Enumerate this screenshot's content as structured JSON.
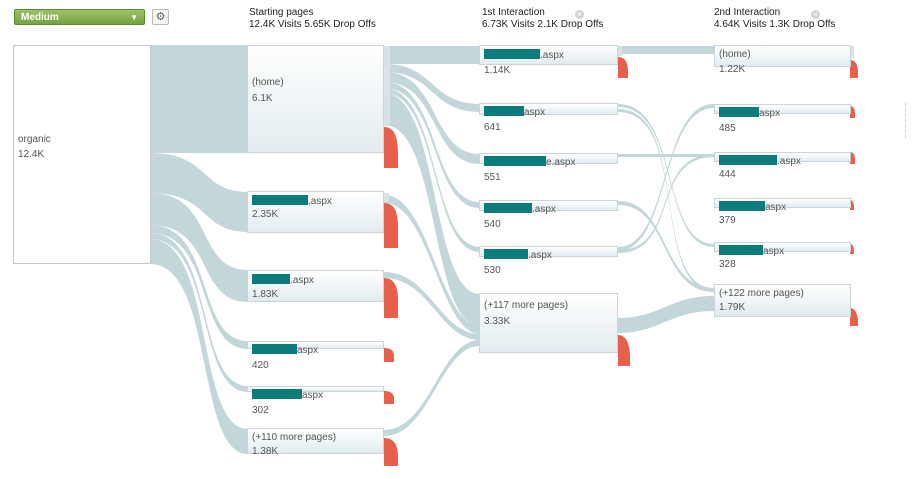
{
  "toolbar": {
    "dimension_select": "Medium",
    "settings_icon": "gear-icon"
  },
  "columns": [
    {
      "title": "Starting pages",
      "stats": "12.4K Visits 5.65K Drop Offs"
    },
    {
      "title": "1st Interaction",
      "stats": "6.73K Visits 2.1K Drop Offs",
      "close_icon": "close-icon"
    },
    {
      "title": "2nd Interaction",
      "stats": "4.64K Visits 1.3K Drop Offs",
      "close_icon": "close-icon"
    }
  ],
  "root": {
    "label": "organic",
    "value": "12.4K"
  },
  "starting_pages": [
    {
      "label": "(home)",
      "value": "6.1K",
      "dropoff_share": 0.26
    },
    {
      "label": ".aspx",
      "value": "2.35K",
      "redacted": true,
      "dropoff_share": 0.7
    },
    {
      "label": ".aspx",
      "value": "1.83K",
      "redacted": true,
      "dropoff_share": 0.75
    },
    {
      "label": "aspx",
      "value": "420",
      "redacted": true,
      "dropoff_share": 0.5
    },
    {
      "label": "aspx",
      "value": "302",
      "redacted": true,
      "dropoff_share": 0.5
    },
    {
      "label": "(+110 more pages)",
      "value": "1.38K",
      "dropoff_share": 0.6
    }
  ],
  "first_interaction": [
    {
      "label": ".aspx",
      "value": "1.14K",
      "redacted": true,
      "dropoff_share": 0.35
    },
    {
      "label": "aspx",
      "value": "641",
      "redacted": true
    },
    {
      "label": "e.aspx",
      "value": "551",
      "redacted": true
    },
    {
      "label": ".aspx",
      "value": "540",
      "redacted": true
    },
    {
      "label": ".aspx",
      "value": "530",
      "redacted": true
    },
    {
      "label": "(+117 more pages)",
      "value": "3.33K",
      "dropoff_share": 0.35
    }
  ],
  "second_interaction": [
    {
      "label": "(home)",
      "value": "1.22K",
      "dropoff_share": 0.35
    },
    {
      "label": "aspx",
      "value": "485",
      "redacted": true
    },
    {
      "label": ".aspx",
      "value": "444",
      "redacted": true
    },
    {
      "label": "aspx",
      "value": "379",
      "redacted": true
    },
    {
      "label": "aspx",
      "value": "328",
      "redacted": true
    },
    {
      "label": "(+122 more pages)",
      "value": "1.79K",
      "dropoff_share": 0.3
    }
  ],
  "colors": {
    "flow": "#b9cfd3",
    "node_border": "#c9d5da",
    "dropoff": "#e8604c",
    "redaction": "#0b7b7b",
    "select_green": "#7fae47"
  }
}
